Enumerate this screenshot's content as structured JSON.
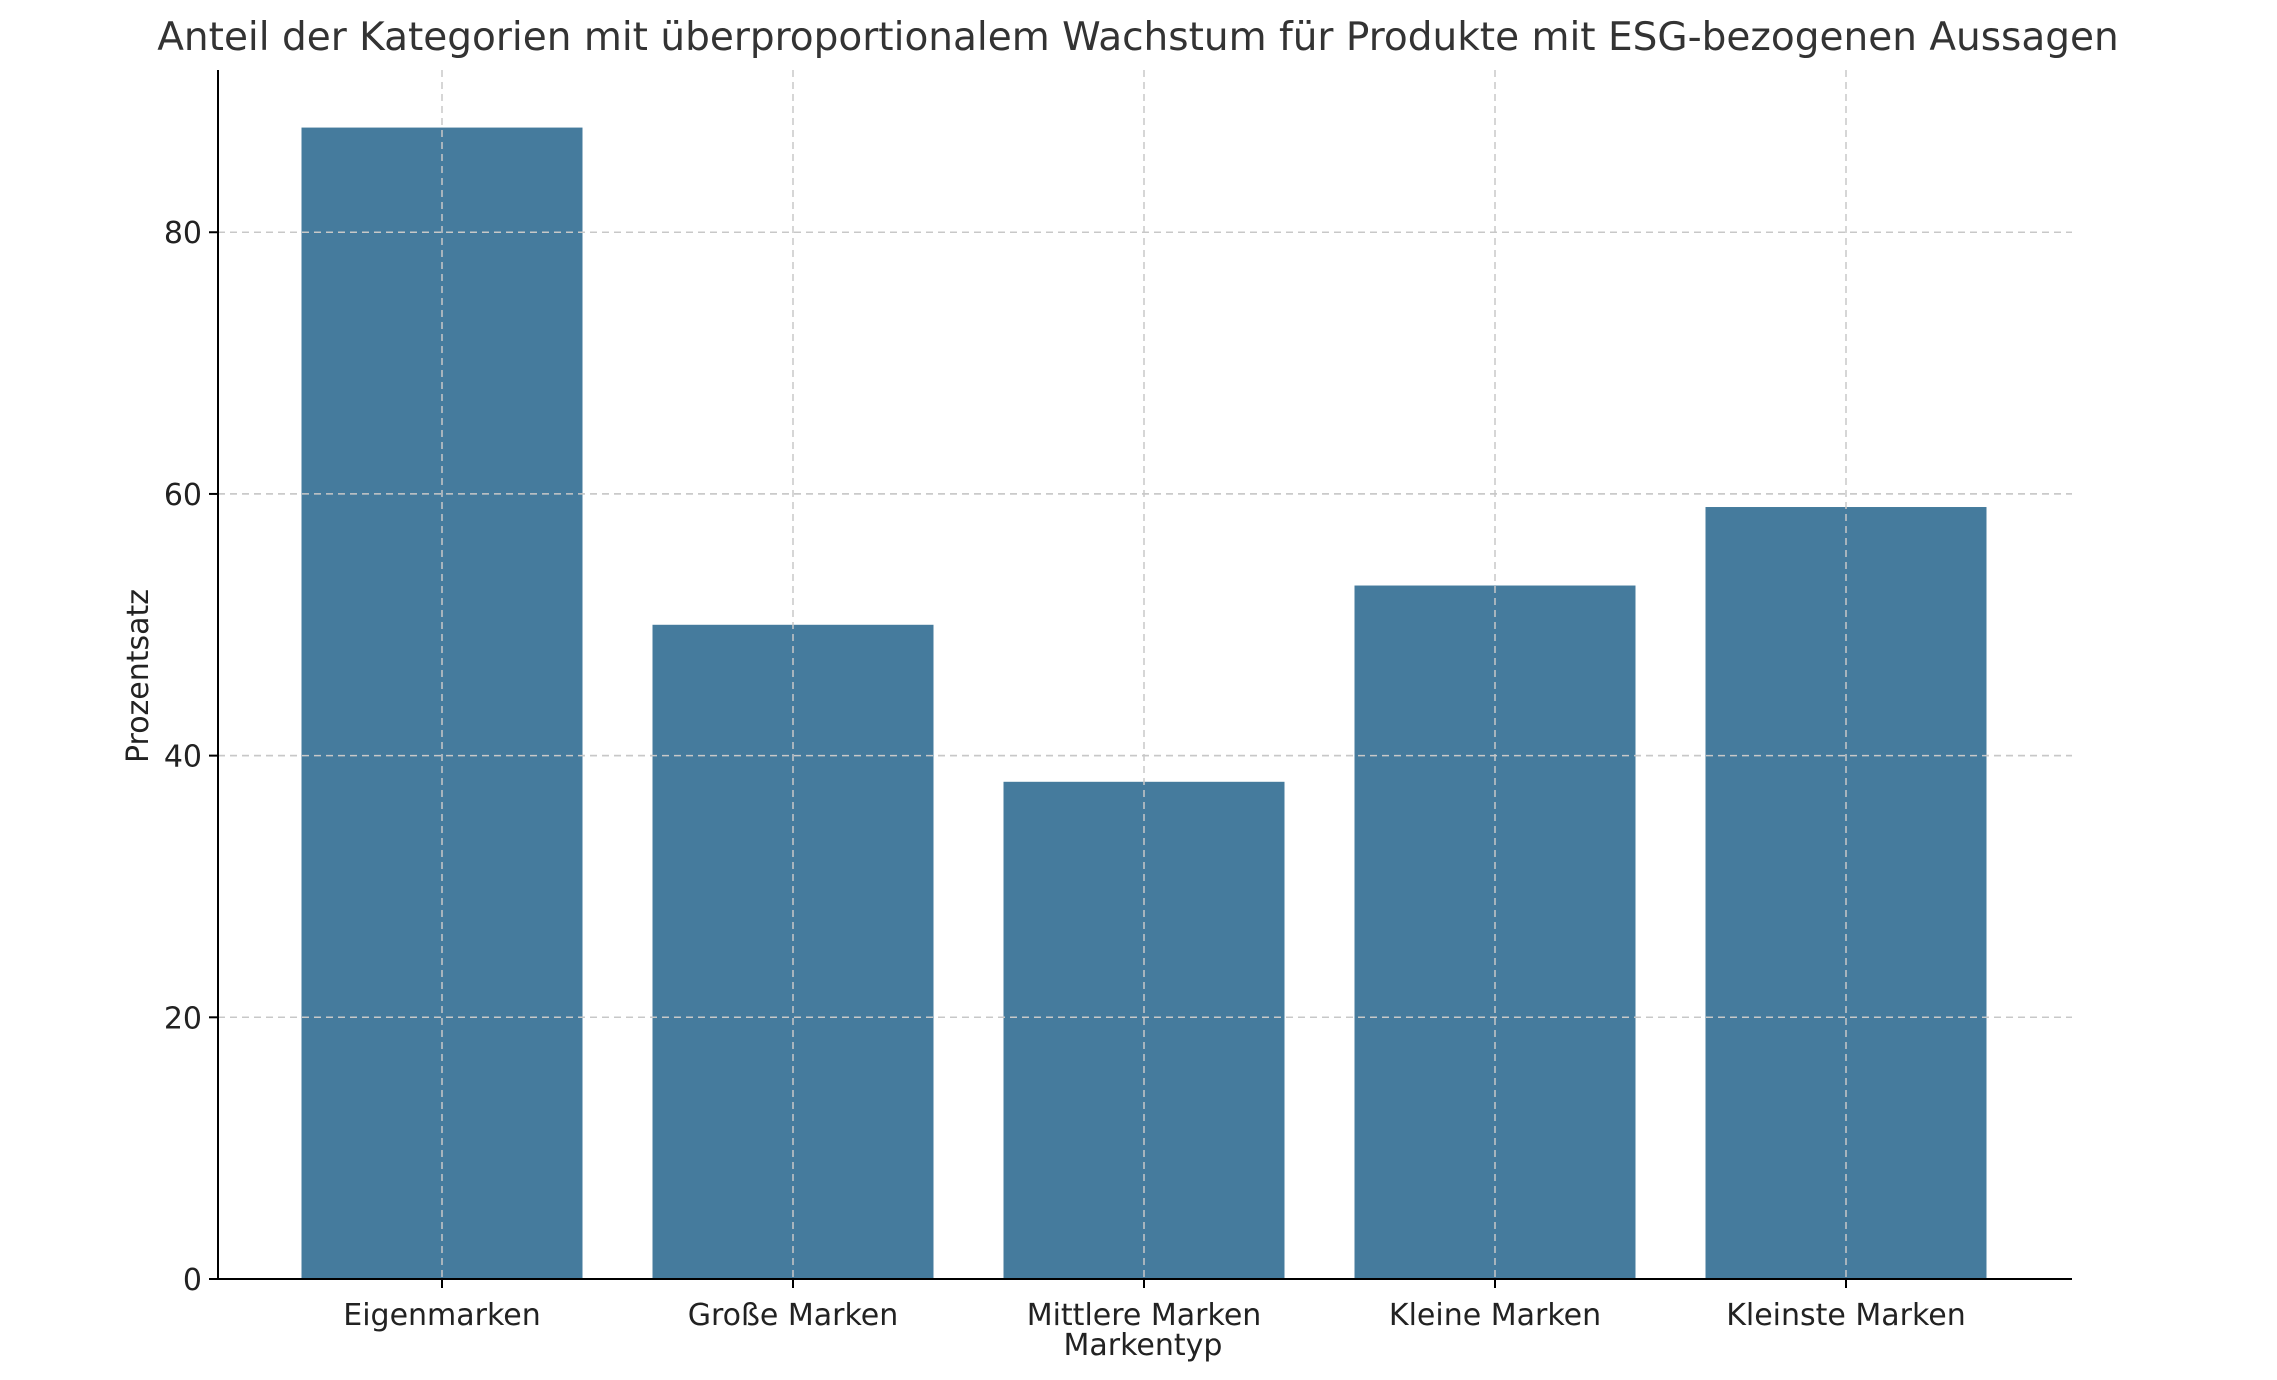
{
  "chart_data": {
    "type": "bar",
    "title": "Anteil der Kategorien mit überproportionalem Wachstum für Produkte mit ESG-bezogenen Aussagen",
    "xlabel": "Markentyp",
    "ylabel": "Prozentsatz",
    "categories": [
      "Eigenmarken",
      "Große Marken",
      "Mittlere Marken",
      "Kleine Marken",
      "Kleinste Marken"
    ],
    "values": [
      88,
      50,
      38,
      53,
      59
    ],
    "ylim": [
      0,
      92.4
    ],
    "yticks": [
      0,
      20,
      40,
      60,
      80
    ],
    "grid": true,
    "bar_color": "#457b9d"
  }
}
